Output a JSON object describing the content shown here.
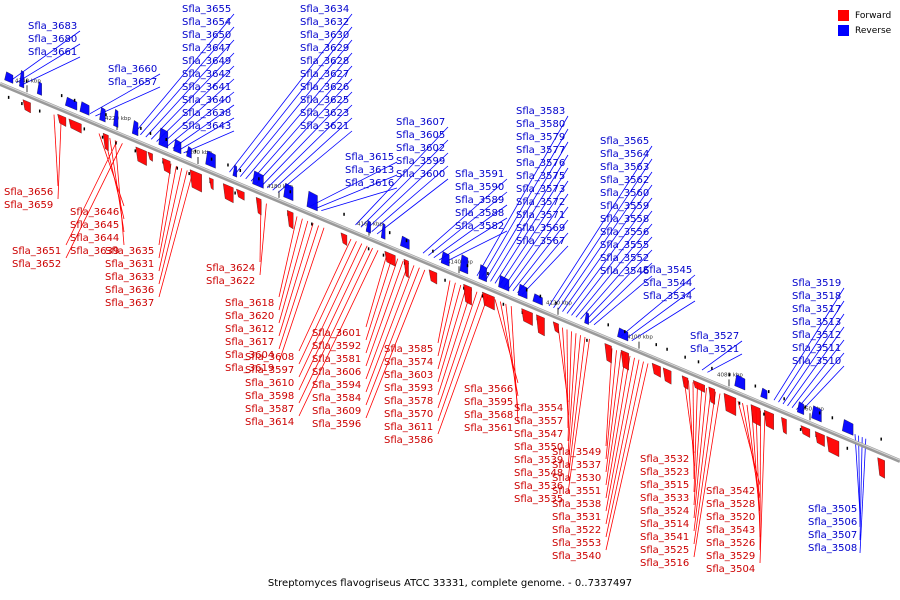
{
  "caption": "Streptomyces flavogriseus ATCC 33331, complete genome. - 0..7337497",
  "legend": [
    {
      "label": "Forward",
      "color": "#ff0000"
    },
    {
      "label": "Reverse",
      "color": "#0000ff"
    }
  ],
  "colors": {
    "forward": "#ff0000",
    "reverse": "#0000ff",
    "forward_label": "#cc0000",
    "reverse_label": "#0000cc",
    "backbone": "#808080"
  },
  "chart_data": {
    "type": "genome-map",
    "title": "Streptomyces flavogriseus ATCC 33331, complete genome. - 0..7337497",
    "ticks": [
      "4240 kbp",
      "4220 kbp",
      "4200 kbp",
      "4180 kbp",
      "4160 kbp",
      "4140 kbp",
      "4120 kbp",
      "4100 kbp",
      "4080 kbp",
      "4060 kbp"
    ],
    "reverse_genes": [
      "Sfla_3683",
      "Sfla_3680",
      "Sfla_3661",
      "Sfla_3660",
      "Sfla_3657",
      "Sfla_3655",
      "Sfla_3654",
      "Sfla_3650",
      "Sfla_3647",
      "Sfla_3649",
      "Sfla_3642",
      "Sfla_3641",
      "Sfla_3640",
      "Sfla_3638",
      "Sfla_3643",
      "Sfla_3634",
      "Sfla_3632",
      "Sfla_3630",
      "Sfla_3629",
      "Sfla_3628",
      "Sfla_3627",
      "Sfla_3626",
      "Sfla_3625",
      "Sfla_3623",
      "Sfla_3621",
      "Sfla_3615",
      "Sfla_3613",
      "Sfla_3616",
      "Sfla_3607",
      "Sfla_3605",
      "Sfla_3602",
      "Sfla_3599",
      "Sfla_3600",
      "Sfla_3591",
      "Sfla_3590",
      "Sfla_3589",
      "Sfla_3588",
      "Sfla_3582",
      "Sfla_3583",
      "Sfla_3580",
      "Sfla_3579",
      "Sfla_3577",
      "Sfla_3576",
      "Sfla_3575",
      "Sfla_3573",
      "Sfla_3572",
      "Sfla_3571",
      "Sfla_3569",
      "Sfla_3567",
      "Sfla_3565",
      "Sfla_3564",
      "Sfla_3563",
      "Sfla_3562",
      "Sfla_3560",
      "Sfla_3559",
      "Sfla_3558",
      "Sfla_3556",
      "Sfla_3555",
      "Sfla_3552",
      "Sfla_3546",
      "Sfla_3545",
      "Sfla_3544",
      "Sfla_3534",
      "Sfla_3527",
      "Sfla_3521",
      "Sfla_3519",
      "Sfla_3518",
      "Sfla_3517",
      "Sfla_3513",
      "Sfla_3512",
      "Sfla_3511",
      "Sfla_3510",
      "Sfla_3505",
      "Sfla_3506",
      "Sfla_3507",
      "Sfla_3508"
    ],
    "forward_genes": [
      "Sfla_3656",
      "Sfla_3659",
      "Sfla_3646",
      "Sfla_3645",
      "Sfla_3644",
      "Sfla_3639",
      "Sfla_3651",
      "Sfla_3652",
      "Sfla_3635",
      "Sfla_3631",
      "Sfla_3633",
      "Sfla_3636",
      "Sfla_3637",
      "Sfla_3624",
      "Sfla_3622",
      "Sfla_3618",
      "Sfla_3620",
      "Sfla_3612",
      "Sfla_3617",
      "Sfla_3604",
      "Sfla_3619",
      "Sfla_3608",
      "Sfla_3597",
      "Sfla_3610",
      "Sfla_3598",
      "Sfla_3587",
      "Sfla_3614",
      "Sfla_3601",
      "Sfla_3592",
      "Sfla_3581",
      "Sfla_3606",
      "Sfla_3594",
      "Sfla_3584",
      "Sfla_3609",
      "Sfla_3596",
      "Sfla_3585",
      "Sfla_3574",
      "Sfla_3603",
      "Sfla_3593",
      "Sfla_3578",
      "Sfla_3570",
      "Sfla_3611",
      "Sfla_3586",
      "Sfla_3566",
      "Sfla_3595",
      "Sfla_3568",
      "Sfla_3561",
      "Sfla_3554",
      "Sfla_3557",
      "Sfla_3547",
      "Sfla_3550",
      "Sfla_3539",
      "Sfla_3548",
      "Sfla_3536",
      "Sfla_3535",
      "Sfla_3549",
      "Sfla_3537",
      "Sfla_3530",
      "Sfla_3551",
      "Sfla_3538",
      "Sfla_3531",
      "Sfla_3522",
      "Sfla_3553",
      "Sfla_3540",
      "Sfla_3532",
      "Sfla_3523",
      "Sfla_3515",
      "Sfla_3533",
      "Sfla_3524",
      "Sfla_3514",
      "Sfla_3541",
      "Sfla_3525",
      "Sfla_3516",
      "Sfla_3542",
      "Sfla_3528",
      "Sfla_3520",
      "Sfla_3543",
      "Sfla_3526",
      "Sfla_3529",
      "Sfla_3504"
    ]
  }
}
